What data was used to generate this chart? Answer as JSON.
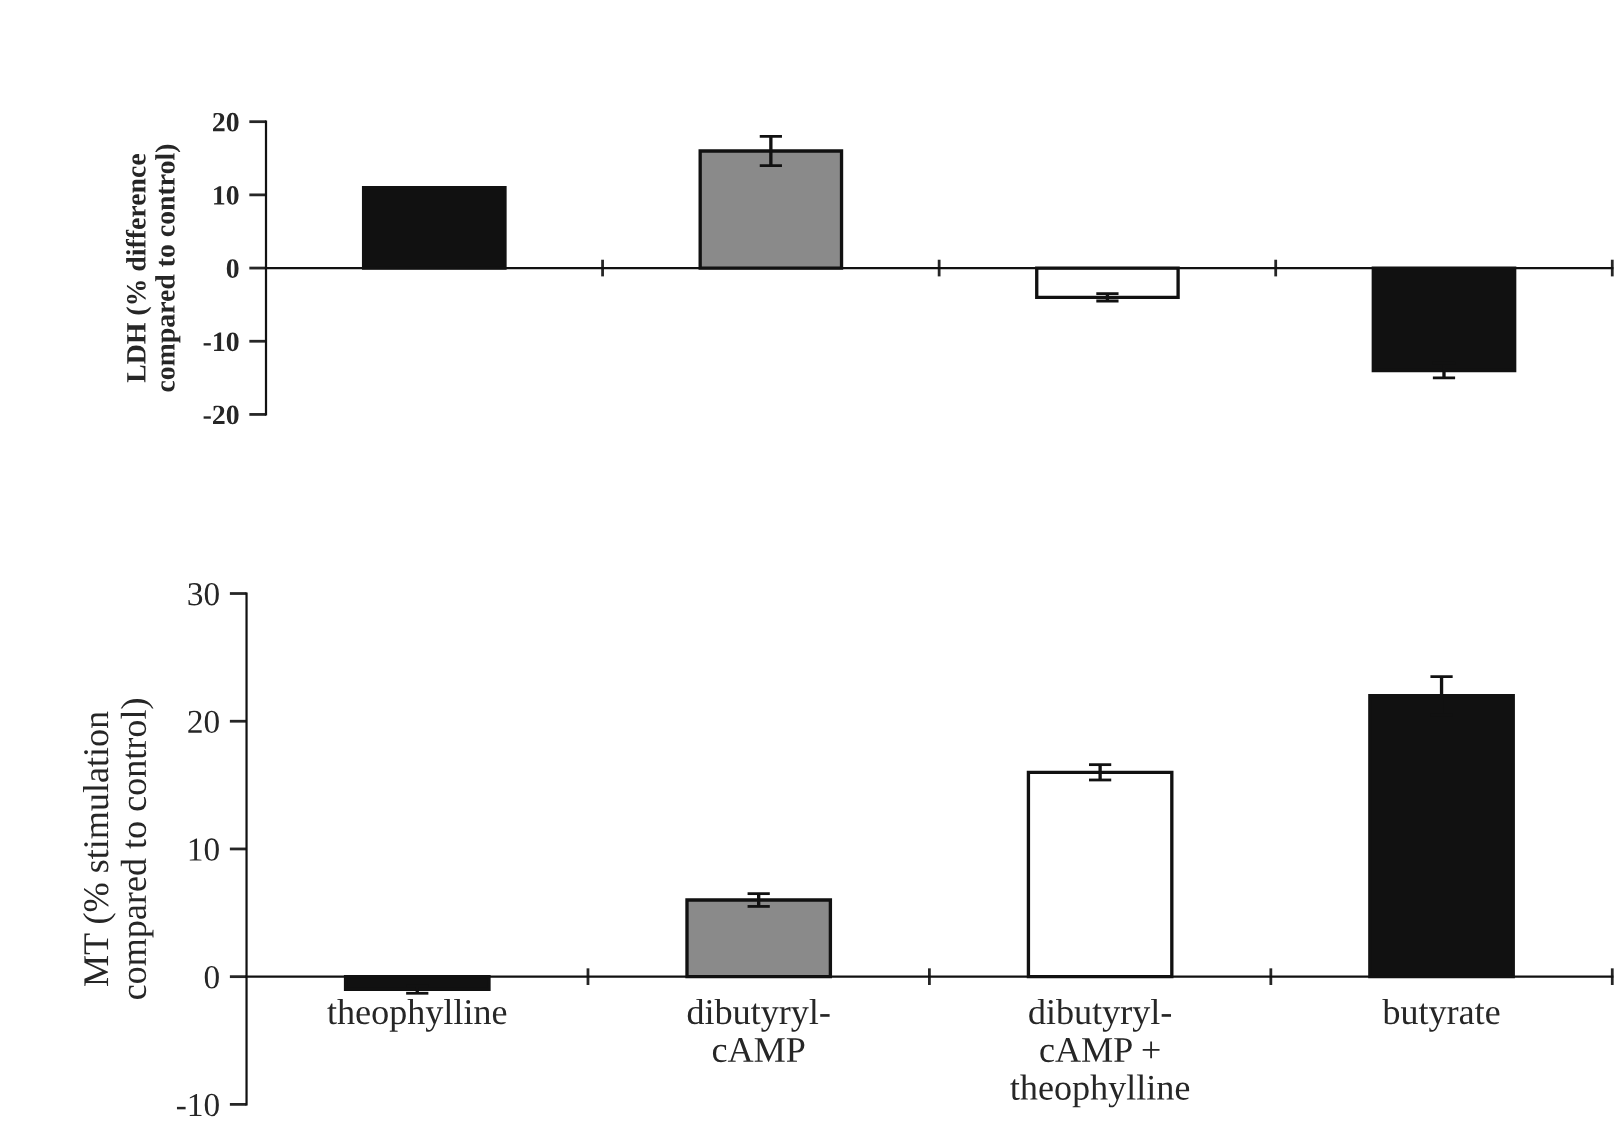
{
  "chart_data": [
    {
      "type": "bar",
      "ylabel": "LDH (% difference\ncompared to control)",
      "categories": [
        null,
        null,
        null,
        null
      ],
      "series": [
        {
          "colors": [
            "#111111",
            "#8a8a8a",
            "#ffffff",
            "#111111"
          ],
          "values": [
            11,
            16,
            -4,
            -14
          ],
          "errors": [
            null,
            2,
            0.5,
            1
          ]
        }
      ],
      "ylim": [
        -20,
        20
      ],
      "yticks": [
        -20,
        -10,
        0,
        10,
        20
      ],
      "tick_labels": "y",
      "legend": false
    },
    {
      "type": "bar",
      "ylabel": "MT (% stimulation\ncompared to control)",
      "categories": [
        "theophylline",
        "dibutyryl-\ncAMP",
        "dibutyryl-\ncAMP +\ntheophylline",
        "butyrate"
      ],
      "series": [
        {
          "colors": [
            "#111111",
            "#8a8a8a",
            "#ffffff",
            "#111111"
          ],
          "values": [
            -1,
            6,
            16,
            22
          ],
          "errors": [
            0.3,
            0.5,
            0.6,
            1.5
          ]
        }
      ],
      "ylim": [
        -10,
        30
      ],
      "yticks": [
        -10,
        0,
        10,
        20,
        30
      ],
      "legend": false
    }
  ]
}
